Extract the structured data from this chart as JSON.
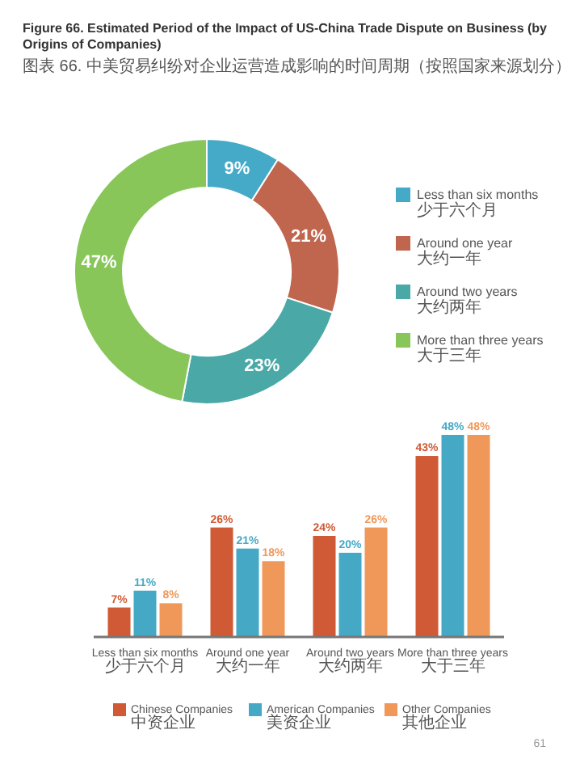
{
  "chart_data": [
    {
      "type": "donut",
      "title": "Figure 66. Estimated Period of the Impact of US-China Trade Dispute on Business (by Origins of Companies)",
      "subtitle": "图表 66. 中美贸易纠纷对企业运营造成影响的时间周期（按照国家来源划分）",
      "categories": [
        "Less than six months\n少于六个月",
        "Around one year\n大约一年",
        "Around two years\n大约两年",
        "More than three years\n大于三年"
      ],
      "values": [
        9,
        21,
        23,
        47
      ],
      "colors": [
        "#45aac8",
        "#c0654e",
        "#4aa8a6",
        "#88c65a"
      ],
      "value_labels": [
        "9%",
        "21%",
        "23%",
        "47%"
      ],
      "legend": "right"
    },
    {
      "type": "bar",
      "categories": [
        "Less than six months\n少于六个月",
        "Around one year\n大约一年",
        "Around two years\n大约两年",
        "More than three years\n大于三年"
      ],
      "series": [
        {
          "name": "Chinese Companies\n中资企业",
          "color": "#d05a35",
          "values": [
            7,
            26,
            24,
            43
          ],
          "value_labels": [
            "7%",
            "26%",
            "24%",
            "43%"
          ]
        },
        {
          "name": "American Companies\n美资企业",
          "color": "#45a9c6",
          "values": [
            11,
            21,
            20,
            48
          ],
          "value_labels": [
            "11%",
            "21%",
            "20%",
            "48%"
          ]
        },
        {
          "name": "Other Companies\n其他企业",
          "color": "#f0985a",
          "values": [
            8,
            18,
            26,
            48
          ],
          "value_labels": [
            "8%",
            "18%",
            "26%",
            "48%"
          ]
        }
      ],
      "legend": "bottom",
      "annotations": [
        "61"
      ]
    }
  ]
}
